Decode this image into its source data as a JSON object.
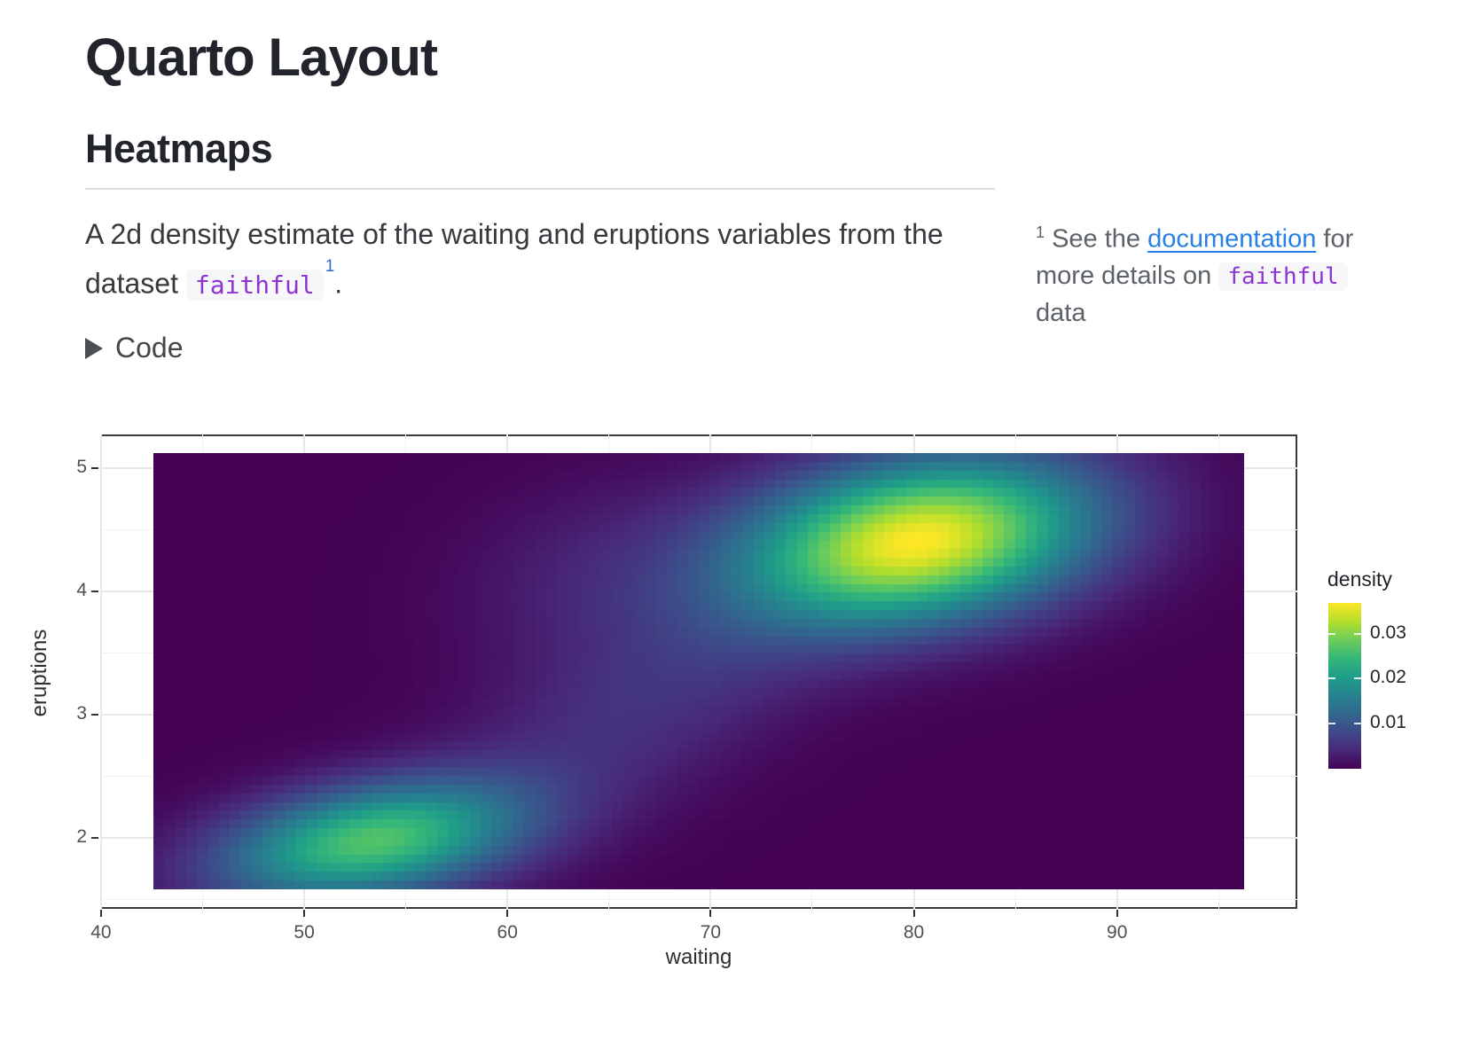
{
  "document": {
    "title": "Quarto Layout",
    "section": "Heatmaps",
    "paragraph": {
      "text": "A 2d density estimate of the waiting and eruptions variables from the dataset ",
      "code": "faithful",
      "footnote_ref": "1",
      "suffix": "."
    },
    "code_toggle": {
      "label": "Code",
      "icon": "triangle-right-icon"
    },
    "margin_note": {
      "ref": "1",
      "text_before_link": " See the ",
      "link_label": "documentation",
      "text_after_link": " for more details on ",
      "code": "faithful",
      "text_end": " data"
    }
  },
  "colors": {
    "heading": "#21252b",
    "body_text": "#36393d",
    "margin_text": "#5c6267",
    "link_blue": "#2780e3",
    "footnote_ref_blue": "#2f6be0",
    "inline_code_purple": "#8c35d4",
    "inline_code_bg": "#f7f7f9",
    "panel_border": "#3a3a3a",
    "gridline": "#e8e8e8",
    "viridis_low": "#440154",
    "viridis_high": "#fde725"
  },
  "chart_data": {
    "type": "heatmap",
    "title": "",
    "xlabel": "waiting",
    "ylabel": "eruptions",
    "x_ticks": [
      40,
      50,
      60,
      70,
      80,
      90
    ],
    "x_minor_ticks": [
      45,
      55,
      65,
      75,
      85,
      95
    ],
    "y_ticks": [
      5,
      4,
      3,
      2
    ],
    "y_minor_ticks": [
      4.5,
      3.5,
      2.5,
      1.5
    ],
    "xlim": [
      39.96,
      98.87
    ],
    "ylim": [
      1.424,
      5.273
    ],
    "grid": true,
    "raster": {
      "x_extent": [
        42.66,
        96.25
      ],
      "y_extent": [
        1.583,
        5.122
      ],
      "ncols": 100,
      "nrows": 50
    },
    "legend": {
      "title": "density",
      "position": "right",
      "ticks": [
        0.01,
        0.02,
        0.03
      ],
      "vmin": 0,
      "vmax": 0.0368
    },
    "colormap": {
      "name": "viridis",
      "stops": [
        "#440154",
        "#482878",
        "#3e4a89",
        "#31688e",
        "#26828e",
        "#1f9e89",
        "#35b779",
        "#6dcd59",
        "#b4de2c",
        "#fde725"
      ]
    },
    "density_components": [
      {
        "peak": 0.0255,
        "mean": [
          53.3,
          1.97
        ],
        "sd": [
          5.2,
          0.34
        ],
        "corr": 0.35
      },
      {
        "peak": 0.0355,
        "mean": [
          80.3,
          4.41
        ],
        "sd": [
          6.0,
          0.47
        ],
        "corr": 0.25
      },
      {
        "peak": 0.0032,
        "mean": [
          64.5,
          4.15
        ],
        "sd": [
          5.0,
          0.55
        ],
        "corr": 0.2
      },
      {
        "peak": 0.005,
        "mean": [
          67.0,
          3.1
        ],
        "sd": [
          7.0,
          0.75
        ],
        "corr": 0.65
      }
    ],
    "modes": [
      {
        "waiting": 53,
        "eruptions": 1.95,
        "density": 0.026
      },
      {
        "waiting": 80,
        "eruptions": 4.4,
        "density": 0.037
      }
    ]
  }
}
